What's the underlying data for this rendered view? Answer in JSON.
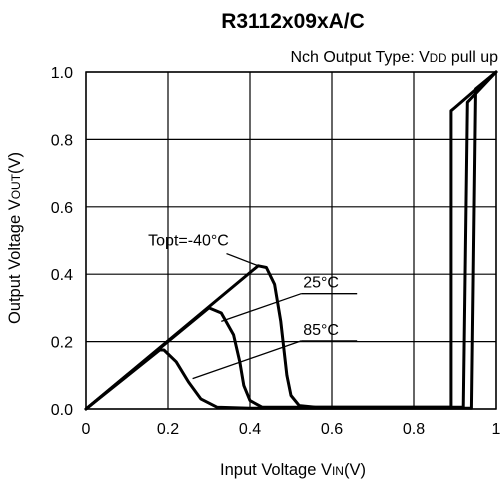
{
  "chart_data": {
    "type": "line",
    "title": "R3112x09xA/C",
    "subtitle": {
      "prefix": "Nch Output Type: V",
      "subscript": "DD",
      "suffix": " pull up"
    },
    "xlabel": {
      "prefix": "Input Voltage V",
      "subscript": "IN",
      "suffix": "(V)"
    },
    "ylabel": {
      "prefix": "Output Voltage V",
      "subscript": "OUT",
      "suffix": "(V)"
    },
    "xlim": [
      0,
      1.0
    ],
    "ylim": [
      0,
      1.0
    ],
    "x_ticks": [
      0,
      0.2,
      0.4,
      0.6,
      0.8,
      1
    ],
    "x_tick_labels": [
      "0",
      "0.2",
      "0.4",
      "0.6",
      "0.8",
      "1"
    ],
    "y_ticks": [
      0,
      0.2,
      0.4,
      0.6,
      0.8,
      1.0
    ],
    "y_tick_labels": [
      "0.0",
      "0.2",
      "0.4",
      "0.6",
      "0.8",
      "1.0"
    ],
    "grid": true,
    "legend": "none",
    "series": [
      {
        "name": "Topt=-40°C",
        "label": "Topt=-40°C",
        "points": [
          [
            0,
            0
          ],
          [
            0.42,
            0.425
          ],
          [
            0.44,
            0.42
          ],
          [
            0.46,
            0.37
          ],
          [
            0.475,
            0.26
          ],
          [
            0.49,
            0.1
          ],
          [
            0.5,
            0.04
          ],
          [
            0.52,
            0.01
          ],
          [
            0.56,
            0.005
          ],
          [
            0.6,
            0.005
          ],
          [
            0.89,
            0.005
          ],
          [
            0.89,
            0.885
          ],
          [
            0.9,
            0.895
          ],
          [
            1.0,
            1.0
          ]
        ]
      },
      {
        "name": "25°C",
        "label": "25°C",
        "points": [
          [
            0,
            0
          ],
          [
            0.3,
            0.3
          ],
          [
            0.33,
            0.285
          ],
          [
            0.36,
            0.22
          ],
          [
            0.375,
            0.14
          ],
          [
            0.385,
            0.07
          ],
          [
            0.4,
            0.025
          ],
          [
            0.43,
            0.005
          ],
          [
            0.5,
            0.005
          ],
          [
            0.92,
            0.005
          ],
          [
            0.93,
            0.91
          ],
          [
            1.0,
            1.0
          ]
        ]
      },
      {
        "name": "85°C",
        "label": "85°C",
        "points": [
          [
            0,
            0
          ],
          [
            0.18,
            0.175
          ],
          [
            0.19,
            0.175
          ],
          [
            0.22,
            0.14
          ],
          [
            0.25,
            0.08
          ],
          [
            0.28,
            0.03
          ],
          [
            0.32,
            0.005
          ],
          [
            0.4,
            0.002
          ],
          [
            0.94,
            0.002
          ],
          [
            0.95,
            0.95
          ],
          [
            1.0,
            1.0
          ]
        ]
      }
    ],
    "annotations": [
      {
        "text": "Topt=-40°C",
        "series": 0,
        "at": [
          0.42,
          0.425
        ],
        "label_at": [
          0.25,
          0.485
        ]
      },
      {
        "text": "25°C",
        "series": 1,
        "at": [
          0.33,
          0.26
        ],
        "label_at": [
          0.52,
          0.36
        ]
      },
      {
        "text": "85°C",
        "series": 2,
        "at": [
          0.26,
          0.09
        ],
        "label_at": [
          0.52,
          0.22
        ]
      }
    ]
  }
}
